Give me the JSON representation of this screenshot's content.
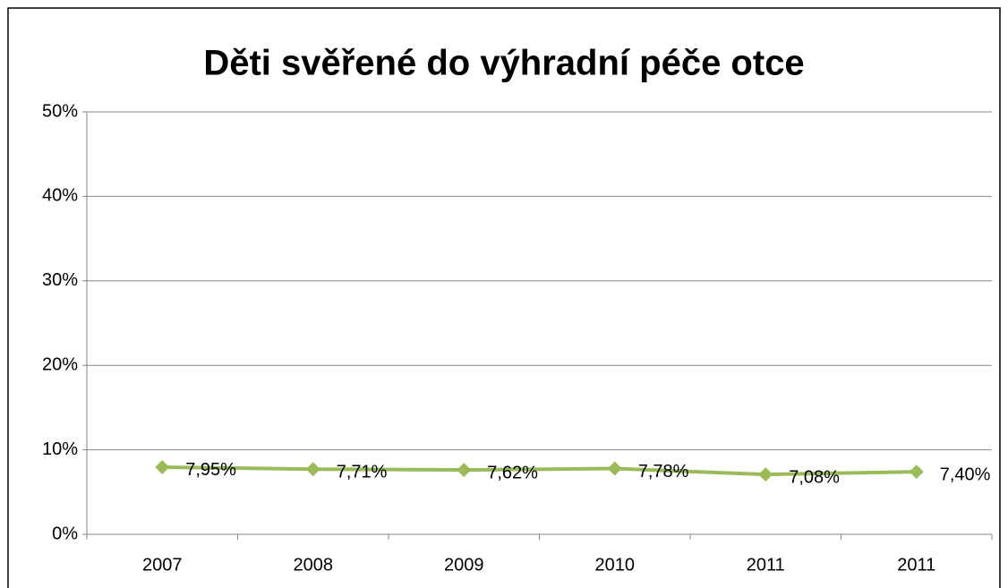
{
  "chart_data": {
    "type": "line",
    "title": "Děti svěřené do výhradní péče otce",
    "categories": [
      "2007",
      "2008",
      "2009",
      "2010",
      "2011",
      "2011"
    ],
    "series": [
      {
        "name": "Děti svěřené do výhradní péče otce",
        "color": "#9bbb59",
        "values": [
          7.95,
          7.71,
          7.62,
          7.78,
          7.08,
          7.4
        ],
        "value_labels": [
          "7,95%",
          "7,71%",
          "7,62%",
          "7,78%",
          "7,08%",
          "7,40%"
        ]
      }
    ],
    "ylim": [
      0,
      50
    ],
    "yticks": [
      {
        "value": 0,
        "label": "0%"
      },
      {
        "value": 10,
        "label": "10%"
      },
      {
        "value": 20,
        "label": "20%"
      },
      {
        "value": 30,
        "label": "30%"
      },
      {
        "value": 40,
        "label": "40%"
      },
      {
        "value": 50,
        "label": "50%"
      }
    ],
    "grid": true
  }
}
